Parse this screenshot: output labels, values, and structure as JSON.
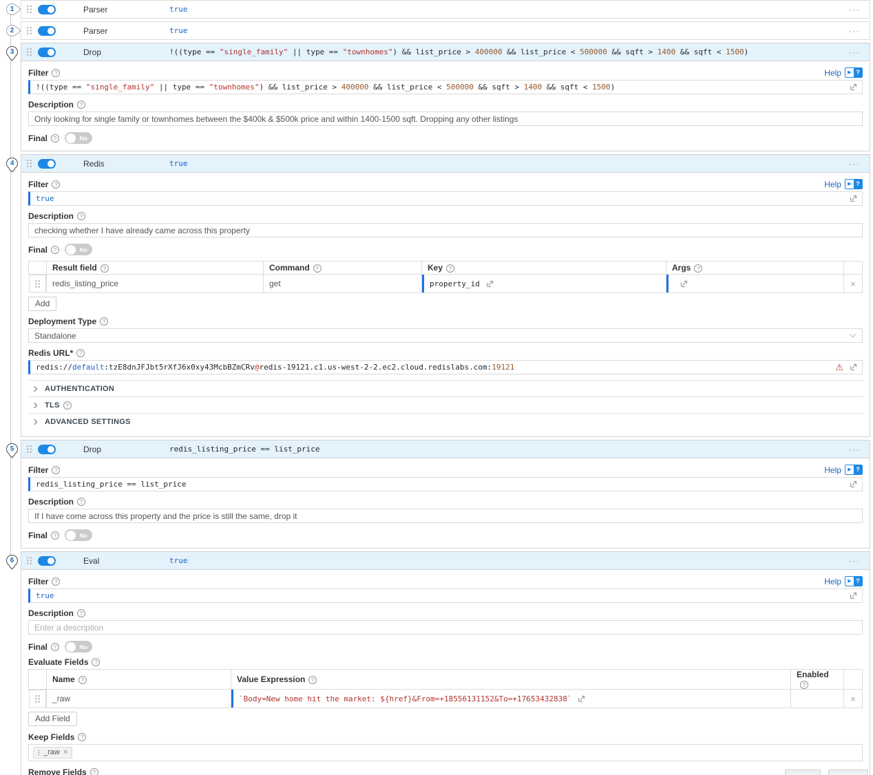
{
  "colors": {
    "accent_blue": "#1e88e5",
    "selected_header_bg": "#e4f2fc",
    "expression_border": "#1a73e8",
    "code_string": "#b3342e",
    "code_number": "#96592e",
    "code_keyword": "#1a65c2",
    "warning": "#c0392b"
  },
  "icons": {
    "help_circle": "?",
    "close": "×",
    "warning": "⚠",
    "play": "▶",
    "question": "?",
    "dots_menu": "···"
  },
  "common": {
    "filter_label": "Filter",
    "description_label": "Description",
    "final_label": "Final",
    "help_label": "Help",
    "final_off": "No"
  },
  "functions": {
    "f1": {
      "index": "1",
      "name": "Parser",
      "expression": "true"
    },
    "f2": {
      "index": "2",
      "name": "Parser",
      "expression": "true"
    },
    "f3": {
      "index": "3",
      "name": "Drop",
      "filter_segments": {
        "a": "!((type == ",
        "b": "\"single_family\"",
        "c": " || type == ",
        "d": "\"townhomes\"",
        "e": ") && list_price > ",
        "f": "400000",
        "g": " && list_price < ",
        "h": "500000",
        "i": " && sqft > ",
        "j": "1400",
        "k": " && sqft < ",
        "l": "1500",
        "m": ")"
      },
      "description": "Only looking for single family or townhomes between the $400k & $500k price and within 1400-1500 sqft. Dropping any other listings",
      "final": "No"
    },
    "f4": {
      "index": "4",
      "name": "Redis",
      "expression": "true",
      "filter": "true",
      "description": "checking whether I have already came across this property",
      "final": "No",
      "commands_table": {
        "headers": {
          "result_field": "Result field",
          "command": "Command",
          "key": "Key",
          "args": "Args"
        },
        "row": {
          "result_field": "redis_listing_price",
          "command": "get",
          "key": "property_id",
          "args": ""
        }
      },
      "add_button": "Add",
      "deployment_type_label": "Deployment Type",
      "deployment_type_value": "Standalone",
      "redis_url_label": "Redis URL*",
      "url_segments": {
        "a": "redis://",
        "b": "default",
        "c": ":tzE8dnJFJbt5rXfJ6x0xy43McbBZmCRv",
        "d": "@",
        "e": "redis-19121.c1.us-west-2-2.ec2.cloud.redislabs.com",
        "f": ":",
        "g": "19121"
      },
      "sections": {
        "auth": "AUTHENTICATION",
        "tls": "TLS",
        "advanced": "ADVANCED SETTINGS"
      }
    },
    "f5": {
      "index": "5",
      "name": "Drop",
      "expression": "redis_listing_price == list_price",
      "filter": "redis_listing_price == list_price",
      "description": "If I have come across this property and the price is still the same, drop it",
      "final": "No"
    },
    "f6": {
      "index": "6",
      "name": "Eval",
      "expression": "true",
      "filter": "true",
      "description_placeholder": "Enter a description",
      "final": "No",
      "evaluate_fields_label": "Evaluate Fields",
      "eval_table": {
        "headers": {
          "name": "Name",
          "value_expression": "Value Expression",
          "enabled": "Enabled"
        },
        "row": {
          "name": "_raw",
          "value_expression": "`Body=New home hit the market: ${href}&From=+18556131152&To=+17653432838`",
          "enabled": "Yes"
        }
      },
      "add_field_button": "Add Field",
      "keep_fields_label": "Keep Fields",
      "keep_tag": "_raw",
      "remove_fields_label": "Remove Fields",
      "remove_tag": "*"
    }
  }
}
